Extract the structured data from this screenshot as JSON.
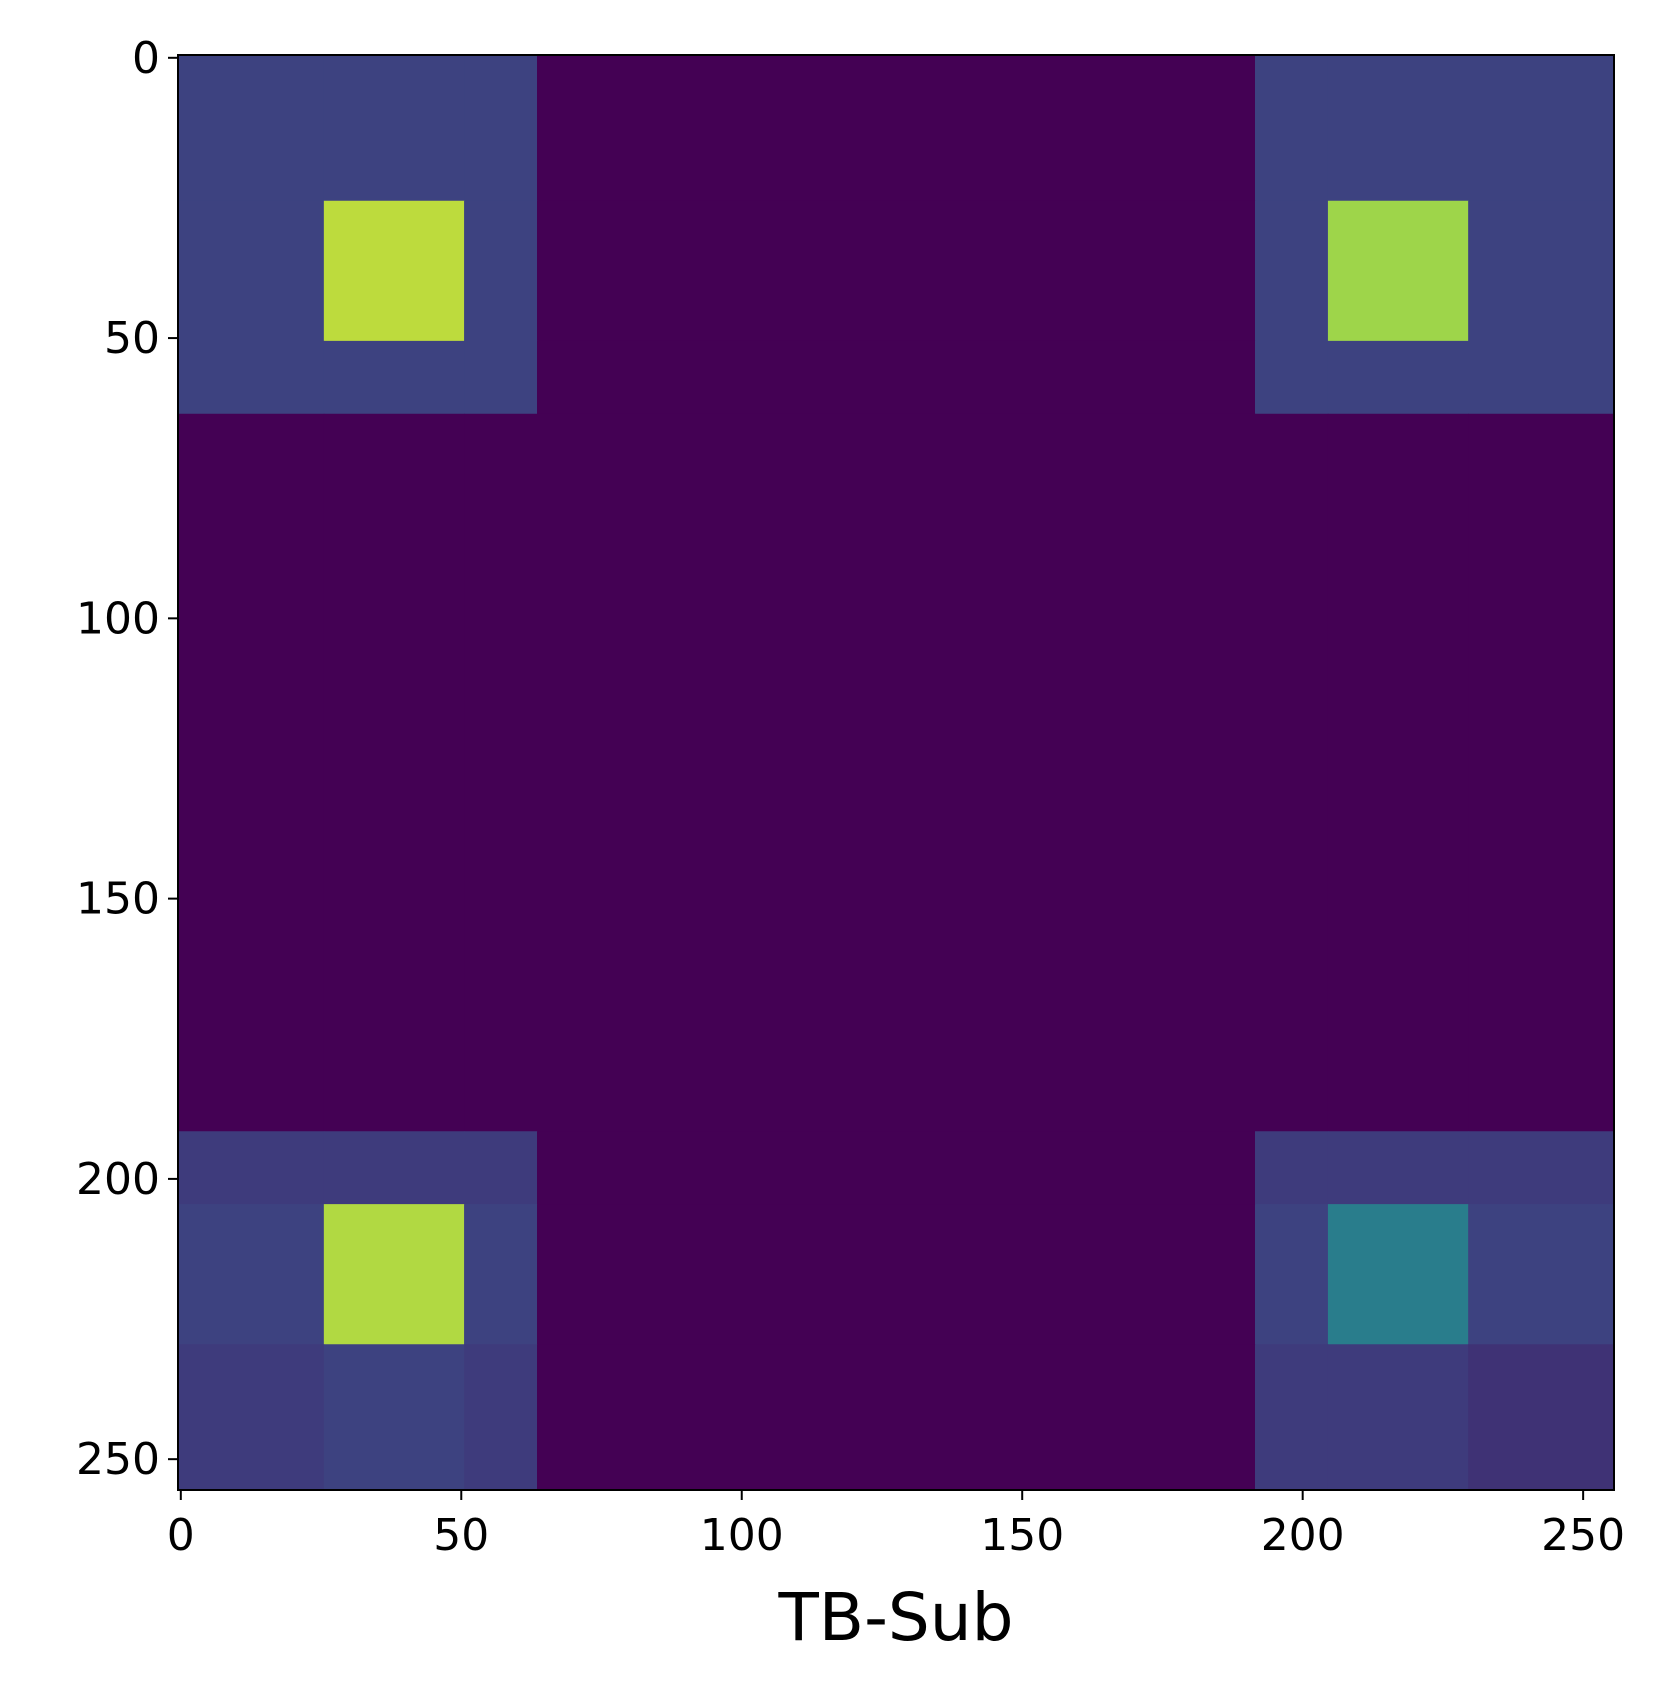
{
  "chart_data": {
    "type": "heatmap",
    "xlabel": "TB-Sub",
    "colormap": "viridis",
    "clim": [
      0,
      1
    ],
    "x_edges": [
      0,
      26,
      51,
      64,
      192,
      205,
      230,
      256
    ],
    "y_edges": [
      0,
      26,
      51,
      64,
      192,
      205,
      230,
      256
    ],
    "values": [
      [
        0.2,
        0.2,
        0.2,
        0,
        0.2,
        0.2,
        0.2
      ],
      [
        0.2,
        0.9,
        0.2,
        0,
        0.2,
        0.85,
        0.2
      ],
      [
        0.2,
        0.2,
        0.2,
        0,
        0.2,
        0.2,
        0.2
      ],
      [
        0,
        0,
        0,
        0,
        0,
        0,
        0
      ],
      [
        0.18,
        0.18,
        0.18,
        0,
        0.18,
        0.18,
        0.18
      ],
      [
        0.2,
        0.88,
        0.2,
        0,
        0.2,
        0.42,
        0.2
      ],
      [
        0.18,
        0.2,
        0.18,
        0,
        0.18,
        0.18,
        0.15
      ]
    ],
    "xlim": [
      -0.5,
      255.5
    ],
    "ylim": [
      255.5,
      -0.5
    ],
    "xticks": [
      0,
      50,
      100,
      150,
      200,
      250
    ],
    "yticks": [
      0,
      50,
      100,
      150,
      200,
      250
    ]
  }
}
